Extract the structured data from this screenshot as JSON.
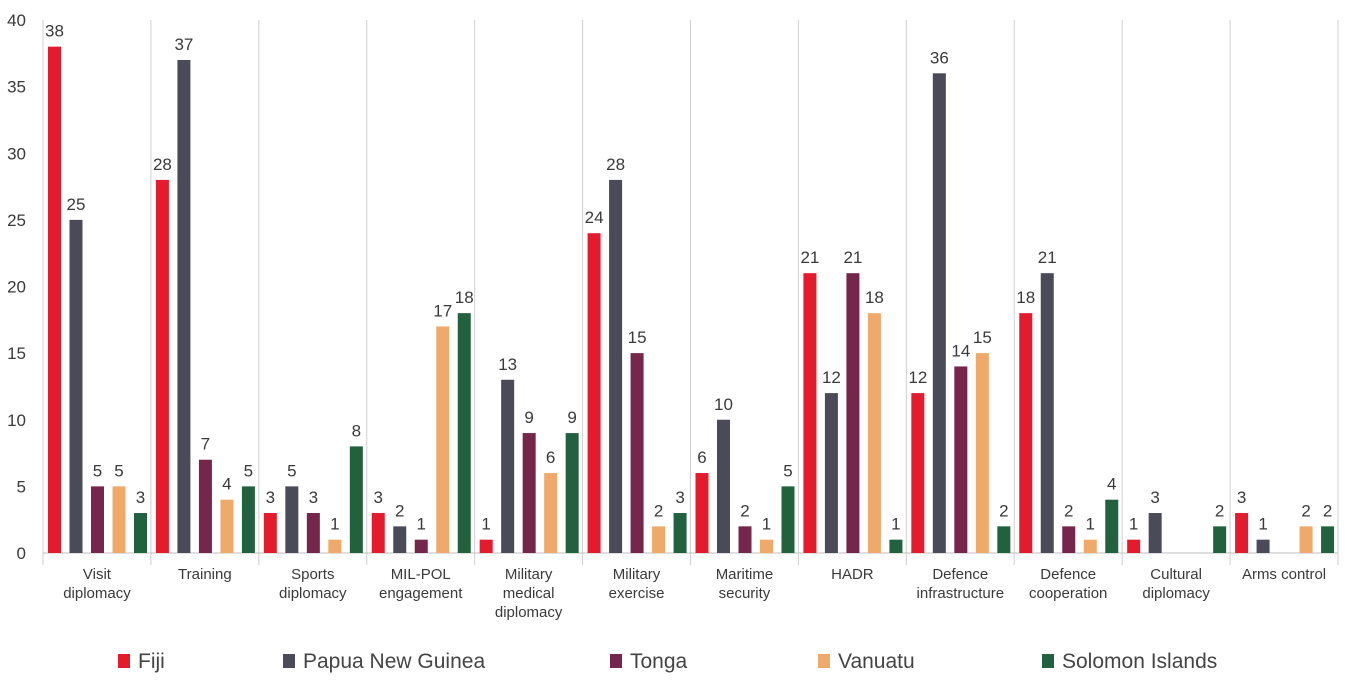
{
  "chart_data": {
    "type": "bar",
    "title": "",
    "xlabel": "",
    "ylabel": "",
    "ylim": [
      0,
      40
    ],
    "yticks": [
      "0",
      "5",
      "10",
      "15",
      "20",
      "25",
      "30",
      "35",
      "40"
    ],
    "grid": "vertical separators between categories",
    "legend_position": "bottom",
    "categories": [
      [
        "Visit",
        "diplomacy"
      ],
      [
        "Training"
      ],
      [
        "Sports",
        "diplomacy"
      ],
      [
        "MIL-POL",
        "engagement"
      ],
      [
        "Military",
        "medical",
        "diplomacy"
      ],
      [
        "Military",
        "exercise"
      ],
      [
        "Maritime",
        "security"
      ],
      [
        "HADR"
      ],
      [
        "Defence",
        "infrastructure"
      ],
      [
        "Defence",
        "cooperation"
      ],
      [
        "Cultural",
        "diplomacy"
      ],
      [
        "Arms control"
      ]
    ],
    "series": [
      {
        "name": "Fiji",
        "color": "#e31b2d",
        "values": [
          38,
          28,
          3,
          3,
          1,
          24,
          6,
          21,
          12,
          18,
          1,
          3
        ]
      },
      {
        "name": "Papua New Guinea",
        "color": "#4a4a59",
        "values": [
          25,
          37,
          5,
          2,
          13,
          28,
          10,
          12,
          36,
          21,
          3,
          1
        ]
      },
      {
        "name": "Tonga",
        "color": "#74264b",
        "values": [
          5,
          7,
          3,
          1,
          9,
          15,
          2,
          21,
          14,
          2,
          null,
          null
        ]
      },
      {
        "name": "Vanuatu",
        "color": "#efa96b",
        "values": [
          5,
          4,
          1,
          17,
          6,
          2,
          1,
          18,
          15,
          1,
          null,
          2
        ]
      },
      {
        "name": "Solomon Islands",
        "color": "#22613d",
        "values": [
          3,
          5,
          8,
          18,
          9,
          3,
          5,
          1,
          2,
          4,
          2,
          2
        ]
      }
    ]
  }
}
